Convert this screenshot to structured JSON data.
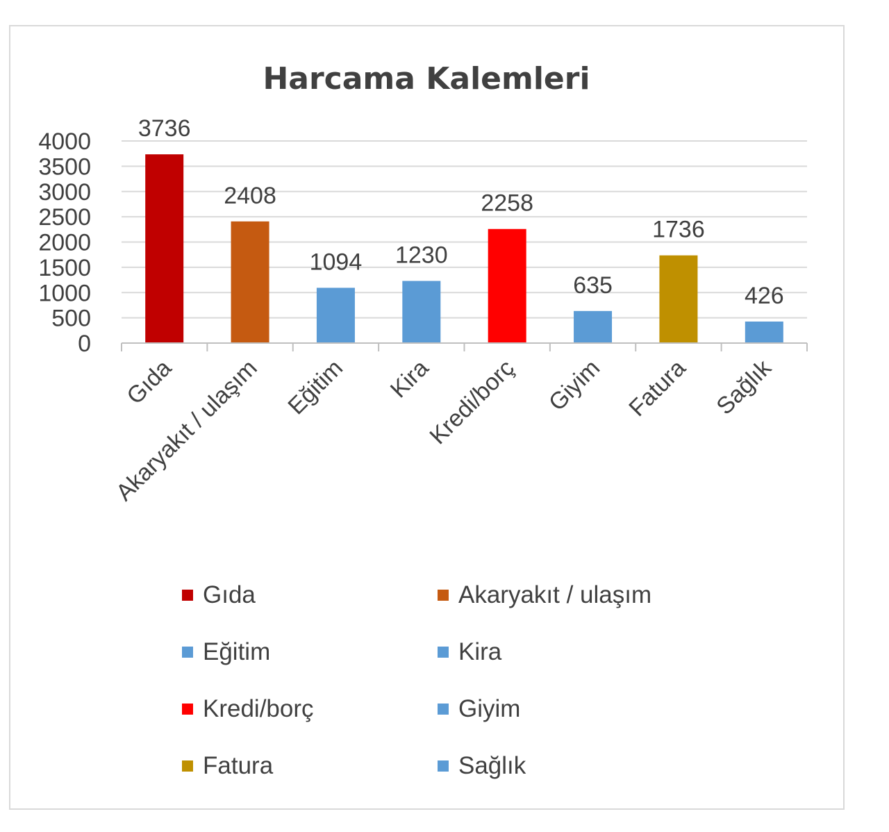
{
  "chart_data": {
    "type": "bar",
    "title": "Harcama Kalemleri",
    "categories": [
      "Gıda",
      "Akaryakıt / ulaşım",
      "Eğitim",
      "Kira",
      "Kredi/borç",
      "Giyim",
      "Fatura",
      "Sağlık"
    ],
    "values": [
      3736,
      2408,
      1094,
      1230,
      2258,
      635,
      1736,
      426
    ],
    "data_labels": [
      "3736",
      "2408",
      "1094",
      "1230",
      "2258",
      "635",
      "1736",
      "426"
    ],
    "colors": [
      "#c00000",
      "#c55a11",
      "#5b9bd5",
      "#5b9bd5",
      "#ff0000",
      "#5b9bd5",
      "#bf9000",
      "#5b9bd5"
    ],
    "ylim": [
      0,
      4000
    ],
    "yticks": [
      0,
      500,
      1000,
      1500,
      2000,
      2500,
      3000,
      3500,
      4000
    ],
    "ytick_labels": [
      "0",
      "500",
      "1000",
      "1500",
      "2000",
      "2500",
      "3000",
      "3500",
      "4000"
    ],
    "xlabel": "",
    "ylabel": "",
    "grid": true,
    "legend": {
      "position": "bottom",
      "entries": [
        "Gıda",
        "Akaryakıt / ulaşım",
        "Eğitim",
        "Kira",
        "Kredi/borç",
        "Giyim",
        "Fatura",
        "Sağlık"
      ]
    }
  }
}
